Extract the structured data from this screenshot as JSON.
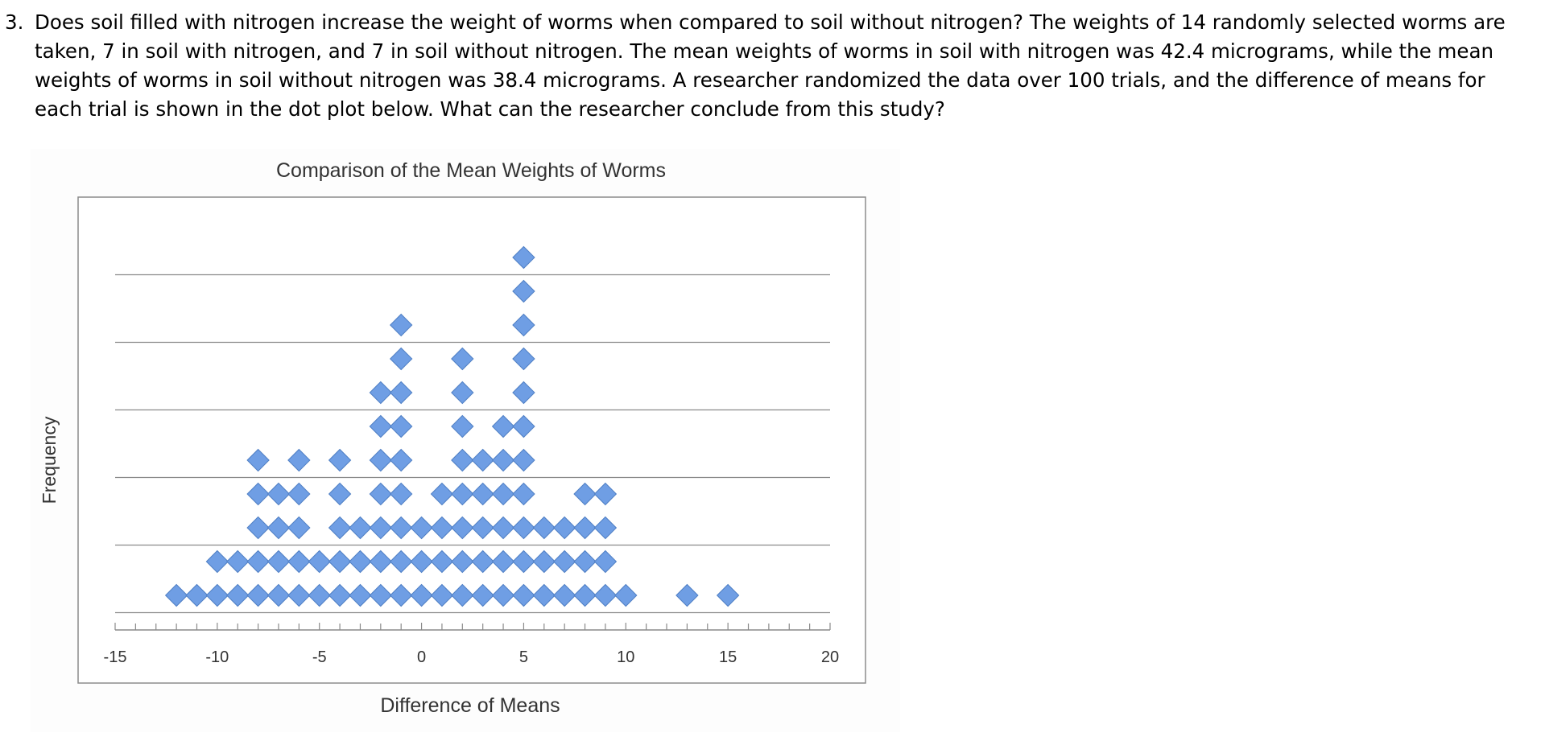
{
  "question": {
    "number": "3.",
    "text": "Does soil filled with nitrogen increase the weight of worms when compared to soil without nitrogen? The weights of 14 randomly selected worms are taken, 7 in soil with nitrogen, and 7 in soil without nitrogen. The mean weights of worms in soil with nitrogen was 42.4 micrograms, while the mean weights of worms in soil without nitrogen was 38.4 micrograms. A researcher randomized the data over 100 trials, and the difference of means for each trial is shown in the dot plot below. What can the researcher conclude from this study?"
  },
  "chart_data": {
    "type": "scatter",
    "title": "Comparison of the Mean Weights of Worms",
    "xlabel": "Difference of Means",
    "ylabel": "Frequency",
    "xlim": [
      -15,
      20
    ],
    "ylim": [
      0,
      11
    ],
    "x_ticks": [
      -15,
      -10,
      -5,
      0,
      5,
      10,
      15,
      20
    ],
    "x_tick_labels": [
      "-15",
      "-10",
      "-5",
      "0",
      "5",
      "10",
      "15",
      "20"
    ],
    "x_minor_step": 1,
    "grid": true,
    "legend": "none",
    "marker": "diamond",
    "marker_color": "#6f9ee4",
    "counts": [
      {
        "x": -12,
        "count": 1
      },
      {
        "x": -11,
        "count": 1
      },
      {
        "x": -10,
        "count": 2
      },
      {
        "x": -9,
        "count": 2
      },
      {
        "x": -8,
        "count": 5
      },
      {
        "x": -7,
        "count": 4
      },
      {
        "x": -6,
        "count": 5
      },
      {
        "x": -5,
        "count": 2
      },
      {
        "x": -4,
        "count": 5
      },
      {
        "x": -3,
        "count": 3
      },
      {
        "x": -2,
        "count": 7
      },
      {
        "x": -1,
        "count": 9
      },
      {
        "x": 0,
        "count": 3
      },
      {
        "x": 1,
        "count": 4
      },
      {
        "x": 2,
        "count": 8
      },
      {
        "x": 3,
        "count": 5
      },
      {
        "x": 4,
        "count": 6
      },
      {
        "x": 5,
        "count": 11
      },
      {
        "x": 6,
        "count": 3
      },
      {
        "x": 7,
        "count": 3
      },
      {
        "x": 8,
        "count": 4
      },
      {
        "x": 9,
        "count": 4
      },
      {
        "x": 10,
        "count": 1
      },
      {
        "x": 13,
        "count": 1
      },
      {
        "x": 15,
        "count": 1
      }
    ]
  }
}
